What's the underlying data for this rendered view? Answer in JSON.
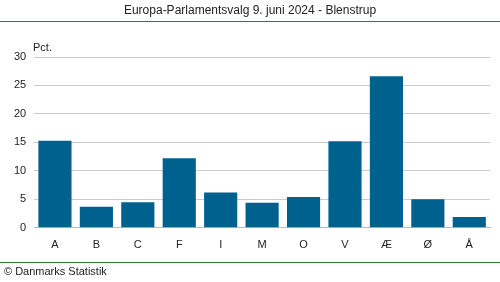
{
  "chart_data": {
    "type": "bar",
    "title": "Europa-Parlamentsvalg 9. juni 2024 - Blenstrup",
    "ylabel": "Pct.",
    "source": "© Danmarks Statistik",
    "categories": [
      "A",
      "B",
      "C",
      "F",
      "I",
      "M",
      "O",
      "V",
      "Æ",
      "Ø",
      "Å"
    ],
    "values": [
      15.3,
      3.7,
      4.5,
      12.2,
      6.2,
      4.4,
      5.4,
      15.2,
      26.6,
      5.0,
      1.9
    ],
    "color": "#00618f",
    "ylim": [
      0,
      30
    ],
    "yticks": [
      0,
      5,
      10,
      15,
      20,
      25,
      30
    ],
    "grid": true
  }
}
